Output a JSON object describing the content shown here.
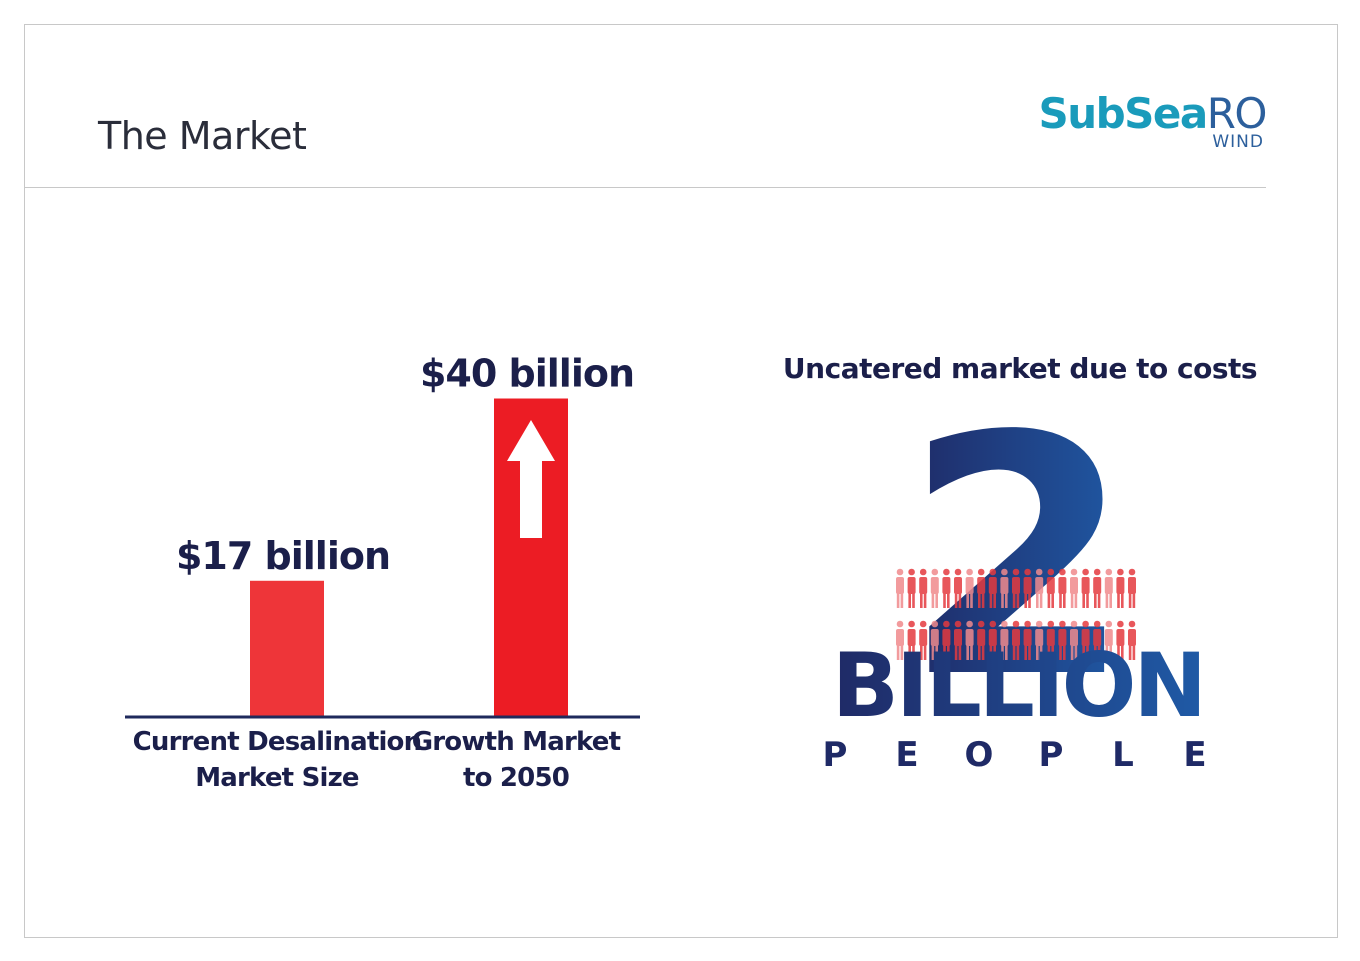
{
  "header": {
    "title": "The Market",
    "logo": {
      "primary": "SubSea",
      "secondary": "RO",
      "tagline": "WIND"
    }
  },
  "chart_data": {
    "type": "bar",
    "categories": [
      "Current Desalination Market Size",
      "Growth Market to 2050"
    ],
    "category_lines": [
      [
        "Current Desalination",
        "Market Size"
      ],
      [
        "Growth Market",
        "to 2050"
      ]
    ],
    "values": [
      17,
      40
    ],
    "data_labels": [
      "$17 billion",
      "$40 billion"
    ],
    "unit": "billion USD",
    "ylim": [
      0,
      40
    ],
    "grid": false,
    "legend": "none",
    "colors": [
      "#ee3539",
      "#ec1c24"
    ],
    "annotations": [
      "up-arrow on Growth Market bar"
    ]
  },
  "infographic": {
    "heading": "Uncatered market due to costs",
    "number": "2",
    "word": "BILLION",
    "subword": "PEOPLE",
    "icon": "people-crowd-icon",
    "colors": {
      "navy": "#1f2a66",
      "blue": "#1f5aa6",
      "red": "#e53a3f"
    }
  },
  "colors": {
    "dark_text": "#1b1f4a",
    "axis": "#1f2a5c",
    "logo_teal": "#1a9bbb",
    "logo_blue": "#2c5f9c"
  }
}
